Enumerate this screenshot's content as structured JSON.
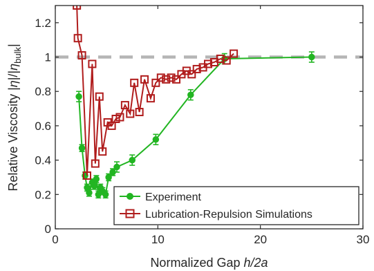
{
  "chart_data": {
    "type": "line",
    "xlabel_prefix": "Normalized Gap ",
    "xlabel_var": "h/2a",
    "ylabel_prefix": "Relative Viscosity |",
    "ylabel_eta1": "η",
    "ylabel_mid": "|/|",
    "ylabel_eta2": "η",
    "ylabel_sub": "bulk",
    "ylabel_suffix": "|",
    "xlim": [
      0,
      30
    ],
    "ylim": [
      0,
      1.3
    ],
    "xticks": [
      "0",
      "10",
      "20",
      "30"
    ],
    "yticks": [
      "0",
      "0.2",
      "0.4",
      "0.6",
      "0.8",
      "1",
      "1.2"
    ],
    "reference_line": {
      "y": 1.0,
      "color": "#b5b5b5",
      "style": "dashed"
    },
    "legend": {
      "placement": "bottom-right"
    },
    "series": [
      {
        "name": "Experiment",
        "color": "#22b522",
        "marker": "circle",
        "x": [
          2.3,
          2.6,
          2.9,
          3.1,
          3.3,
          3.6,
          3.8,
          4.0,
          4.2,
          4.4,
          4.6,
          4.9,
          5.2,
          5.6,
          6.0,
          7.5,
          9.8,
          13.2,
          16.5,
          25.0
        ],
        "y": [
          0.77,
          0.47,
          0.31,
          0.24,
          0.21,
          0.27,
          0.25,
          0.29,
          0.2,
          0.24,
          0.22,
          0.2,
          0.3,
          0.33,
          0.36,
          0.4,
          0.52,
          0.78,
          0.99,
          1.0
        ],
        "err": [
          0.03,
          0.02,
          0.02,
          0.02,
          0.02,
          0.02,
          0.02,
          0.02,
          0.02,
          0.02,
          0.02,
          0.02,
          0.02,
          0.02,
          0.03,
          0.03,
          0.03,
          0.03,
          0.03,
          0.03
        ]
      },
      {
        "name": "Lubrication-Repulsion Simulations",
        "color": "#b01c1c",
        "marker": "square",
        "x": [
          2.1,
          2.2,
          2.6,
          3.1,
          3.6,
          3.9,
          4.3,
          4.6,
          5.1,
          5.5,
          5.9,
          6.3,
          6.8,
          7.3,
          7.7,
          8.2,
          8.7,
          9.3,
          9.8,
          10.3,
          10.8,
          11.3,
          11.8,
          12.3,
          12.8,
          13.3,
          13.8,
          14.4,
          14.9,
          15.5,
          16.1,
          16.7,
          17.4
        ],
        "y": [
          1.3,
          1.11,
          1.01,
          0.31,
          0.96,
          0.38,
          0.77,
          0.45,
          0.62,
          0.6,
          0.64,
          0.65,
          0.72,
          0.67,
          0.85,
          0.68,
          0.87,
          0.76,
          0.85,
          0.88,
          0.87,
          0.88,
          0.87,
          0.9,
          0.92,
          0.9,
          0.93,
          0.94,
          0.96,
          0.97,
          0.99,
          0.98,
          1.02
        ]
      }
    ]
  }
}
